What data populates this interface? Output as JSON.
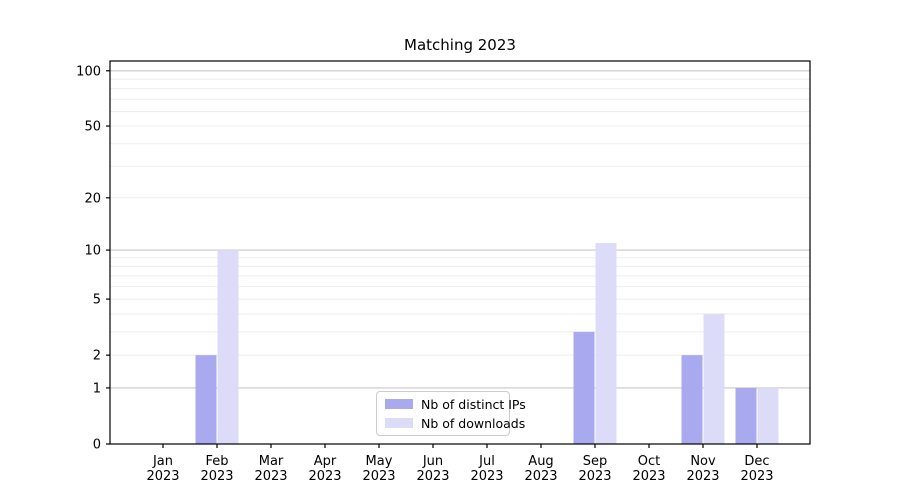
{
  "chart_data": {
    "type": "bar",
    "title": "Matching 2023",
    "categories": [
      [
        "Jan",
        "2023"
      ],
      [
        "Feb",
        "2023"
      ],
      [
        "Mar",
        "2023"
      ],
      [
        "Apr",
        "2023"
      ],
      [
        "May",
        "2023"
      ],
      [
        "Jun",
        "2023"
      ],
      [
        "Jul",
        "2023"
      ],
      [
        "Aug",
        "2023"
      ],
      [
        "Sep",
        "2023"
      ],
      [
        "Oct",
        "2023"
      ],
      [
        "Nov",
        "2023"
      ],
      [
        "Dec",
        "2023"
      ]
    ],
    "series": [
      {
        "name": "Nb of distinct IPs",
        "color": "#a9a9f0",
        "values": [
          0,
          2,
          0,
          0,
          0,
          0,
          0,
          0,
          3,
          0,
          2,
          1
        ]
      },
      {
        "name": "Nb of downloads",
        "color": "#dcdcf8",
        "values": [
          0,
          10,
          0,
          0,
          0,
          0,
          0,
          0,
          11,
          0,
          4,
          1
        ]
      }
    ],
    "yscale": "log1p",
    "ylim": [
      0,
      113
    ],
    "ytick_labels": [
      "0",
      "1",
      "2",
      "5",
      "10",
      "20",
      "50",
      "100"
    ],
    "yticks": [
      0,
      1,
      2,
      5,
      10,
      20,
      50,
      100
    ],
    "grid": {
      "major_values": [
        1,
        10,
        100
      ],
      "minor_values": [
        2,
        3,
        4,
        5,
        6,
        7,
        8,
        9,
        20,
        30,
        40,
        50,
        60,
        70,
        80,
        90
      ],
      "major_color": "#c8c8c8",
      "minor_color": "#ededed"
    },
    "axis_color": "#000000",
    "legend_position": "inside-bottom-center"
  }
}
